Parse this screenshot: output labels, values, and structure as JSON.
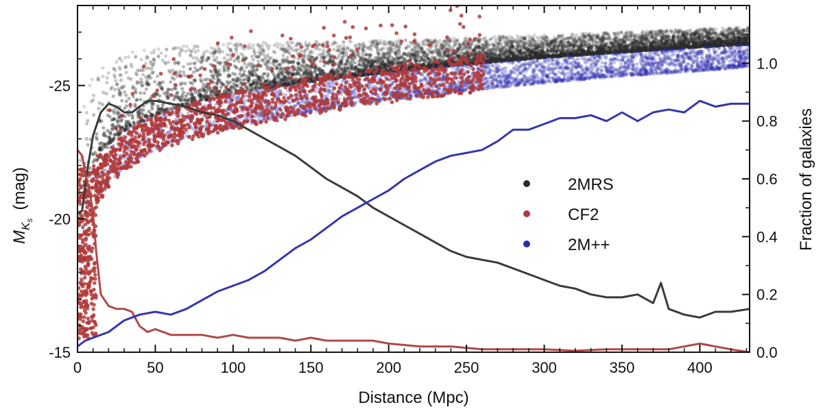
{
  "chart_data": {
    "type": "scatter",
    "title": "",
    "xlabel": "Distance (Mpc)",
    "ylabel_left_main": "M",
    "ylabel_left_sub": "K",
    "ylabel_left_subsub": "s",
    "ylabel_left_unit": "(mag)",
    "ylabel_right": "Fraction of galaxies",
    "xlim": [
      0,
      432
    ],
    "ylim_left": [
      -15,
      -28
    ],
    "ylim_right": [
      0,
      1.2
    ],
    "x_ticks": [
      "0",
      "50",
      "100",
      "150",
      "200",
      "250",
      "300",
      "350",
      "400"
    ],
    "x_tick_values": [
      0,
      50,
      100,
      150,
      200,
      250,
      300,
      350,
      400
    ],
    "y_left_ticks": [
      "-15",
      "-20",
      "-25"
    ],
    "y_left_tick_values": [
      -15,
      -20,
      -25
    ],
    "y_right_ticks": [
      "0.0",
      "0.2",
      "0.4",
      "0.6",
      "0.8",
      "1.0"
    ],
    "y_right_tick_values": [
      0.0,
      0.2,
      0.4,
      0.6,
      0.8,
      1.0
    ],
    "legend_position": "center-right",
    "grid": false,
    "series": [
      {
        "name": "2MRS",
        "kind": "scatter",
        "color": "#2a2a2a",
        "limit_curve": [
          [
            1,
            -18.2
          ],
          [
            5,
            -20.5
          ],
          [
            10,
            -21.8
          ],
          [
            20,
            -22.8
          ],
          [
            30,
            -23.3
          ],
          [
            50,
            -23.9
          ],
          [
            75,
            -24.35
          ],
          [
            100,
            -24.7
          ],
          [
            150,
            -25.15
          ],
          [
            200,
            -25.5
          ],
          [
            250,
            -25.8
          ],
          [
            300,
            -26.05
          ],
          [
            350,
            -26.25
          ],
          [
            400,
            -26.45
          ],
          [
            432,
            -26.55
          ]
        ],
        "upper_envelope": [
          [
            2,
            -24.0
          ],
          [
            10,
            -25.5
          ],
          [
            30,
            -26.2
          ],
          [
            60,
            -26.5
          ],
          [
            100,
            -26.6
          ],
          [
            200,
            -26.7
          ],
          [
            300,
            -26.9
          ],
          [
            432,
            -27.2
          ]
        ]
      },
      {
        "name": "CF2",
        "kind": "scatter",
        "color": "#b03a3a",
        "limit_curve": [
          [
            1,
            -15.8
          ],
          [
            5,
            -18.8
          ],
          [
            10,
            -20.2
          ],
          [
            20,
            -21.2
          ],
          [
            30,
            -21.8
          ],
          [
            50,
            -22.5
          ],
          [
            75,
            -23.0
          ],
          [
            100,
            -23.35
          ],
          [
            150,
            -23.9
          ],
          [
            200,
            -24.35
          ],
          [
            250,
            -24.7
          ],
          [
            300,
            -25.0
          ],
          [
            350,
            -25.2
          ],
          [
            400,
            -25.4
          ]
        ]
      },
      {
        "name": "2M++",
        "kind": "scatter",
        "color": "#2b2bb0",
        "limit_curve": [
          [
            1,
            -16.0
          ],
          [
            5,
            -19.0
          ],
          [
            10,
            -20.3
          ],
          [
            20,
            -21.3
          ],
          [
            30,
            -21.9
          ],
          [
            50,
            -22.6
          ],
          [
            75,
            -23.1
          ],
          [
            100,
            -23.45
          ],
          [
            150,
            -24.0
          ],
          [
            200,
            -24.45
          ],
          [
            250,
            -24.8
          ],
          [
            300,
            -25.1
          ],
          [
            350,
            -25.35
          ],
          [
            400,
            -25.55
          ],
          [
            432,
            -25.7
          ]
        ]
      },
      {
        "name": "2MRS fraction",
        "kind": "line",
        "axis": "right",
        "color": "#3a3a3a",
        "points": [
          [
            0,
            0.48
          ],
          [
            3,
            0.49
          ],
          [
            6,
            0.62
          ],
          [
            10,
            0.75
          ],
          [
            15,
            0.83
          ],
          [
            20,
            0.86
          ],
          [
            25,
            0.85
          ],
          [
            30,
            0.83
          ],
          [
            35,
            0.83
          ],
          [
            40,
            0.85
          ],
          [
            45,
            0.87
          ],
          [
            50,
            0.87
          ],
          [
            60,
            0.86
          ],
          [
            70,
            0.85
          ],
          [
            80,
            0.83
          ],
          [
            90,
            0.82
          ],
          [
            100,
            0.8
          ],
          [
            110,
            0.77
          ],
          [
            120,
            0.74
          ],
          [
            130,
            0.71
          ],
          [
            140,
            0.68
          ],
          [
            150,
            0.64
          ],
          [
            160,
            0.6
          ],
          [
            170,
            0.57
          ],
          [
            180,
            0.54
          ],
          [
            190,
            0.5
          ],
          [
            200,
            0.47
          ],
          [
            210,
            0.44
          ],
          [
            220,
            0.41
          ],
          [
            230,
            0.38
          ],
          [
            240,
            0.35
          ],
          [
            250,
            0.33
          ],
          [
            260,
            0.32
          ],
          [
            270,
            0.31
          ],
          [
            280,
            0.29
          ],
          [
            290,
            0.27
          ],
          [
            300,
            0.25
          ],
          [
            310,
            0.23
          ],
          [
            320,
            0.22
          ],
          [
            330,
            0.2
          ],
          [
            340,
            0.19
          ],
          [
            350,
            0.19
          ],
          [
            360,
            0.2
          ],
          [
            370,
            0.17
          ],
          [
            375,
            0.24
          ],
          [
            380,
            0.15
          ],
          [
            390,
            0.13
          ],
          [
            400,
            0.12
          ],
          [
            410,
            0.14
          ],
          [
            420,
            0.14
          ],
          [
            432,
            0.15
          ]
        ]
      },
      {
        "name": "CF2 fraction",
        "kind": "line",
        "axis": "right",
        "color": "#b04848",
        "points": [
          [
            0,
            0.7
          ],
          [
            3,
            0.68
          ],
          [
            5,
            0.62
          ],
          [
            8,
            0.55
          ],
          [
            10,
            0.48
          ],
          [
            12,
            0.35
          ],
          [
            15,
            0.2
          ],
          [
            20,
            0.16
          ],
          [
            25,
            0.15
          ],
          [
            30,
            0.15
          ],
          [
            35,
            0.14
          ],
          [
            40,
            0.09
          ],
          [
            45,
            0.07
          ],
          [
            50,
            0.08
          ],
          [
            60,
            0.06
          ],
          [
            70,
            0.06
          ],
          [
            80,
            0.06
          ],
          [
            90,
            0.05
          ],
          [
            100,
            0.06
          ],
          [
            110,
            0.05
          ],
          [
            120,
            0.05
          ],
          [
            130,
            0.05
          ],
          [
            140,
            0.04
          ],
          [
            150,
            0.05
          ],
          [
            160,
            0.04
          ],
          [
            170,
            0.04
          ],
          [
            180,
            0.04
          ],
          [
            190,
            0.04
          ],
          [
            200,
            0.03
          ],
          [
            220,
            0.02
          ],
          [
            240,
            0.02
          ],
          [
            260,
            0.01
          ],
          [
            280,
            0.01
          ],
          [
            300,
            0.01
          ],
          [
            320,
            0.005
          ],
          [
            340,
            0.01
          ],
          [
            360,
            0.01
          ],
          [
            380,
            0.01
          ],
          [
            400,
            0.03
          ],
          [
            410,
            0.02
          ],
          [
            420,
            0.01
          ],
          [
            432,
            0.0
          ]
        ]
      },
      {
        "name": "2M++ fraction",
        "kind": "line",
        "axis": "right",
        "color": "#3434b0",
        "points": [
          [
            0,
            0.02
          ],
          [
            5,
            0.04
          ],
          [
            10,
            0.05
          ],
          [
            20,
            0.07
          ],
          [
            30,
            0.11
          ],
          [
            40,
            0.13
          ],
          [
            50,
            0.14
          ],
          [
            60,
            0.13
          ],
          [
            70,
            0.15
          ],
          [
            80,
            0.18
          ],
          [
            90,
            0.21
          ],
          [
            100,
            0.23
          ],
          [
            110,
            0.25
          ],
          [
            120,
            0.28
          ],
          [
            130,
            0.32
          ],
          [
            140,
            0.36
          ],
          [
            150,
            0.39
          ],
          [
            160,
            0.43
          ],
          [
            170,
            0.47
          ],
          [
            180,
            0.5
          ],
          [
            190,
            0.53
          ],
          [
            200,
            0.56
          ],
          [
            210,
            0.6
          ],
          [
            220,
            0.63
          ],
          [
            230,
            0.66
          ],
          [
            240,
            0.68
          ],
          [
            250,
            0.69
          ],
          [
            260,
            0.7
          ],
          [
            270,
            0.73
          ],
          [
            280,
            0.77
          ],
          [
            290,
            0.77
          ],
          [
            300,
            0.79
          ],
          [
            310,
            0.81
          ],
          [
            320,
            0.81
          ],
          [
            330,
            0.82
          ],
          [
            340,
            0.8
          ],
          [
            350,
            0.83
          ],
          [
            360,
            0.8
          ],
          [
            370,
            0.83
          ],
          [
            380,
            0.84
          ],
          [
            390,
            0.83
          ],
          [
            400,
            0.87
          ],
          [
            410,
            0.85
          ],
          [
            420,
            0.86
          ],
          [
            432,
            0.86
          ]
        ]
      }
    ]
  }
}
